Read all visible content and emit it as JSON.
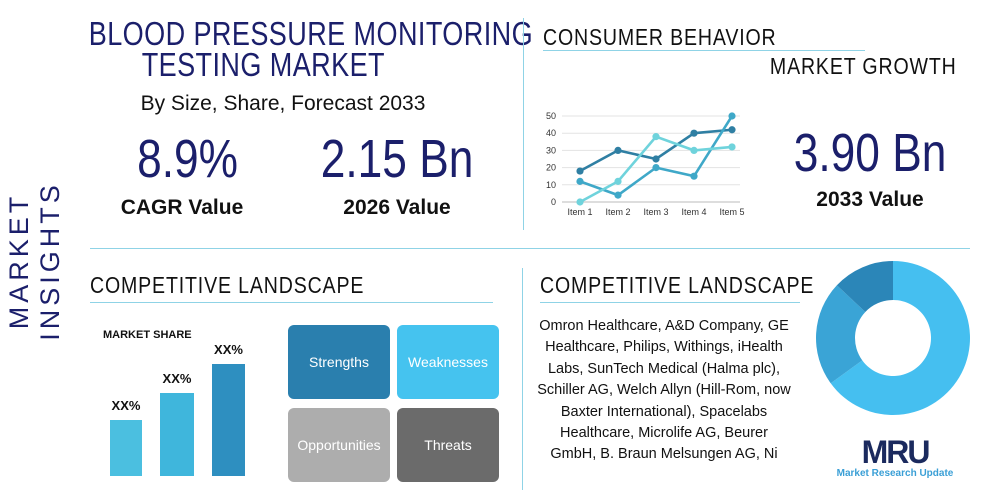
{
  "side_label": "MARKET INSIGHTS",
  "title": [
    "BLOOD PRESSURE MONITORING",
    "TESTING MARKET"
  ],
  "subtitle": "By Size, Share, Forecast 2033",
  "stats": [
    {
      "value": "8.9%",
      "label": "CAGR Value"
    },
    {
      "value": "2.15 Bn",
      "label": "2026 Value"
    },
    {
      "value": "3.90 Bn",
      "label": "2033 Value"
    }
  ],
  "consumer_behavior": "CONSUMER BEHAVIOR",
  "market_growth": "MARKET GROWTH",
  "chart_data": {
    "type": "line",
    "categories": [
      "Item 1",
      "Item 2",
      "Item 3",
      "Item 4",
      "Item 5"
    ],
    "ylim": [
      0,
      50
    ],
    "yticks": [
      0,
      10,
      20,
      30,
      40,
      50
    ],
    "grid": true,
    "series": [
      {
        "values": [
          18,
          30,
          25,
          40,
          42
        ],
        "color": "#2f7fa3"
      },
      {
        "values": [
          12,
          4,
          20,
          15,
          50
        ],
        "color": "#3fa8c8"
      },
      {
        "values": [
          0,
          12,
          38,
          30,
          32
        ],
        "color": "#6fd3dc"
      }
    ]
  },
  "competitive_left": {
    "heading": "COMPETITIVE LANDSCAPE",
    "market_share": "MARKET SHARE",
    "bars": [
      {
        "label": "XX%",
        "level": 0.43
      },
      {
        "label": "XX%",
        "level": 0.64
      },
      {
        "label": "XX%",
        "level": 0.86
      }
    ]
  },
  "swot": [
    "Strengths",
    "Weaknesses",
    "Opportunities",
    "Threats"
  ],
  "competitive_right": {
    "heading": "COMPETITIVE LANDSCAPE",
    "text": "Omron Healthcare, A&D Company, GE Healthcare, Philips, Withings, iHealth Labs, SunTech Medical (Halma plc), Schiller AG, Welch Allyn (Hill-Rom, now Baxter International), Spacelabs Healthcare, Microlife AG, Beurer GmbH, B. Braun Melsungen AG, Ni"
  },
  "donut": [
    {
      "value": 65,
      "color": "#45bff0"
    },
    {
      "value": 22,
      "color": "#3aa4d6"
    },
    {
      "value": 13,
      "color": "#2b86b8"
    }
  ],
  "logo": {
    "mark": "MRU",
    "name": "Market Research Update"
  }
}
